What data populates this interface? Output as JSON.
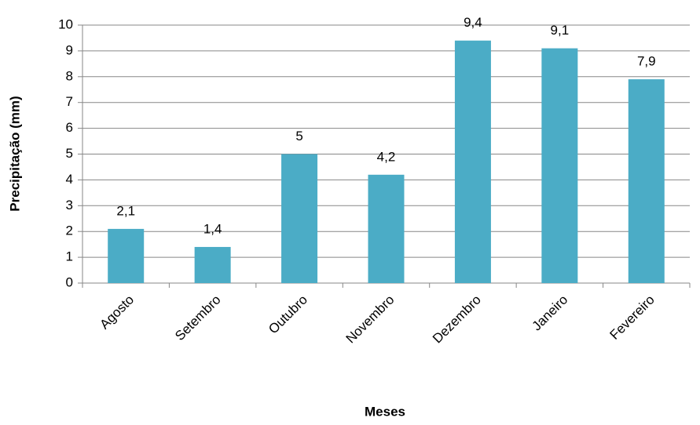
{
  "chart_data": {
    "type": "bar",
    "x_label": "Meses",
    "y_label": "Precipitação (mm)",
    "categories": [
      "Agosto",
      "Setembro",
      "Outubro",
      "Novembro",
      "Dezembro",
      "Janeiro",
      "Fevereiro"
    ],
    "values": [
      2.1,
      1.4,
      5,
      4.2,
      9.4,
      9.1,
      7.9
    ],
    "value_labels": [
      "2,1",
      "1,4",
      "5",
      "4,2",
      "9,4",
      "9,1",
      "7,9"
    ],
    "color": "#4bacc6",
    "ylim": [
      0,
      10
    ],
    "yticks": [
      0,
      1,
      2,
      3,
      4,
      5,
      6,
      7,
      8,
      9,
      10
    ],
    "grid": true
  }
}
